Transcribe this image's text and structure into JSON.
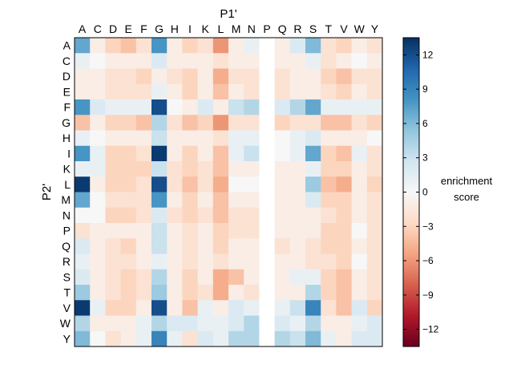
{
  "chart_data": {
    "type": "heatmap",
    "title": "",
    "xlabel": "P1'",
    "ylabel": "P2'",
    "colorbar_label": [
      "enrichment",
      "score"
    ],
    "x_tick_position": "top",
    "colormap": "diverging red-white-blue (RdBu)",
    "vmin": -13.5,
    "vmax": 13.5,
    "colorbar_ticks": [
      12,
      9,
      6,
      3,
      0,
      -3,
      -6,
      -9,
      -12
    ],
    "colorbar_tick_labels": [
      "12",
      "9",
      "6",
      "3",
      "0",
      "−3",
      "−6",
      "−9",
      "−12"
    ],
    "grid": false,
    "missing_columns_note": "",
    "x_categories": [
      "A",
      "C",
      "D",
      "E",
      "F",
      "G",
      "H",
      "I",
      "K",
      "L",
      "M",
      "N",
      "P",
      "Q",
      "R",
      "S",
      "T",
      "V",
      "W",
      "Y"
    ],
    "y_categories": [
      "A",
      "C",
      "D",
      "E",
      "F",
      "G",
      "H",
      "I",
      "K",
      "L",
      "M",
      "N",
      "P",
      "Q",
      "R",
      "S",
      "T",
      "V",
      "W",
      "Y"
    ],
    "values": [
      [
        7,
        -1,
        -3,
        -4,
        -2,
        8,
        -1,
        -3,
        -2,
        -6,
        -1,
        1,
        null,
        -1,
        2,
        6,
        -2,
        -3,
        -1,
        -2
      ],
      [
        1,
        0,
        -1,
        -1,
        -1,
        2,
        -1,
        -1,
        -1,
        -2,
        -1,
        -1,
        null,
        -1,
        -1,
        1,
        -2,
        -1,
        0,
        -1
      ],
      [
        -1,
        -1,
        -2,
        -2,
        -3,
        -1,
        -2,
        -3,
        -1,
        -5,
        -2,
        -2,
        null,
        -2,
        -1,
        -1,
        -3,
        -4,
        -2,
        -2
      ],
      [
        -1,
        -1,
        -2,
        -2,
        -2,
        1,
        -1,
        -3,
        -1,
        -4,
        -1,
        -2,
        null,
        -2,
        -1,
        -1,
        -2,
        -3,
        -1,
        -2
      ],
      [
        8,
        2,
        1,
        1,
        1,
        12,
        0,
        -1,
        2,
        -1,
        3,
        4,
        null,
        2,
        4,
        7,
        1,
        1,
        1,
        1
      ],
      [
        -4,
        -1,
        -3,
        -3,
        -4,
        4,
        -2,
        -4,
        -3,
        -6,
        -2,
        -2,
        null,
        -3,
        -2,
        -2,
        -4,
        -4,
        -2,
        -3
      ],
      [
        1,
        0,
        -1,
        -1,
        -1,
        3,
        -1,
        -1,
        -1,
        -2,
        1,
        1,
        null,
        0,
        1,
        2,
        -1,
        -1,
        -1,
        0
      ],
      [
        8,
        1,
        -3,
        -3,
        -2,
        13,
        -1,
        -3,
        -1,
        -4,
        1,
        3,
        null,
        0,
        1,
        7,
        -3,
        -4,
        1,
        -2
      ],
      [
        1,
        1,
        -3,
        -3,
        -3,
        3,
        -2,
        -3,
        -2,
        -4,
        -1,
        -1,
        null,
        -1,
        -1,
        1,
        -3,
        -3,
        -1,
        -2
      ],
      [
        13,
        -1,
        -3,
        -3,
        -2,
        12,
        -2,
        -4,
        -2,
        -5,
        0,
        0,
        null,
        -1,
        -1,
        5,
        -4,
        -5,
        -1,
        -3
      ],
      [
        7,
        0,
        -2,
        -2,
        -2,
        8,
        -1,
        -3,
        -1,
        -4,
        -1,
        -1,
        null,
        -1,
        -1,
        2,
        -3,
        -3,
        -1,
        -2
      ],
      [
        0,
        0,
        -3,
        -3,
        -2,
        2,
        -2,
        -3,
        -2,
        -4,
        -2,
        -2,
        null,
        -1,
        -1,
        -1,
        -2,
        -3,
        -1,
        -2
      ],
      [
        -2,
        -1,
        -1,
        -1,
        -1,
        3,
        -1,
        -2,
        -1,
        -3,
        -2,
        -2,
        null,
        -1,
        -1,
        -1,
        -3,
        -3,
        0,
        -2
      ],
      [
        2,
        -1,
        -2,
        -3,
        -1,
        3,
        -1,
        -2,
        -1,
        -3,
        -1,
        -1,
        null,
        -2,
        -1,
        -2,
        -3,
        -3,
        -1,
        -2
      ],
      [
        1,
        -1,
        -2,
        -2,
        -1,
        1,
        -1,
        -2,
        -1,
        -2,
        -1,
        -1,
        null,
        -1,
        -1,
        -2,
        -2,
        -3,
        0,
        -2
      ],
      [
        2,
        -1,
        -2,
        -3,
        -2,
        4,
        -1,
        -3,
        -1,
        -5,
        -4,
        -1,
        null,
        -1,
        1,
        1,
        -3,
        -4,
        -1,
        -2
      ],
      [
        5,
        -1,
        -2,
        -3,
        -2,
        5,
        -1,
        -3,
        -2,
        -5,
        -1,
        -2,
        null,
        -1,
        -1,
        4,
        -3,
        -4,
        -1,
        -2
      ],
      [
        13,
        1,
        -3,
        -3,
        -1,
        12,
        -1,
        -4,
        1,
        -1,
        2,
        1,
        null,
        1,
        3,
        9,
        -2,
        -4,
        2,
        -3
      ],
      [
        4,
        -1,
        -1,
        -1,
        1,
        4,
        2,
        2,
        1,
        1,
        2,
        4,
        null,
        2,
        1,
        4,
        -1,
        -1,
        1,
        2
      ],
      [
        6,
        0,
        -2,
        -1,
        1,
        9,
        1,
        -2,
        2,
        1,
        4,
        4,
        null,
        4,
        3,
        6,
        1,
        -1,
        2,
        2
      ]
    ]
  }
}
